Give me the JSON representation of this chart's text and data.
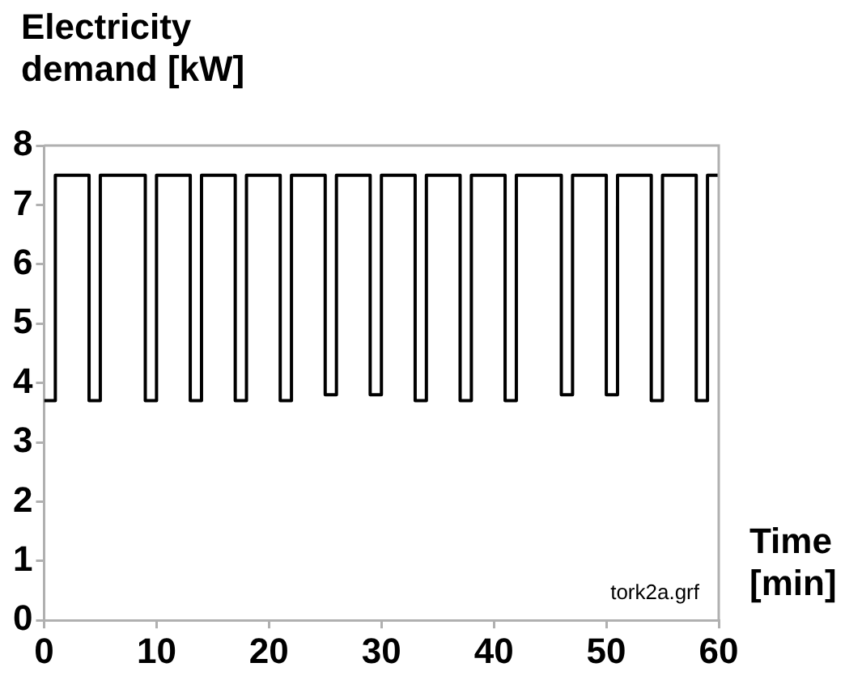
{
  "chart_data": {
    "type": "step",
    "ylabel": "Electricity\ndemand [kW]",
    "xlabel": "Time\n[min]",
    "x": [
      0,
      1,
      4,
      5,
      9,
      10,
      13,
      14,
      17,
      18,
      21,
      22,
      25,
      26,
      29,
      30,
      33,
      34,
      37,
      38,
      41,
      42,
      46,
      47,
      50,
      51,
      54,
      55,
      58,
      59,
      60
    ],
    "series": [
      {
        "color": "#000000",
        "values": [
          3.7,
          7.5,
          3.7,
          7.5,
          3.7,
          7.5,
          3.7,
          7.5,
          3.7,
          7.5,
          3.7,
          7.5,
          3.8,
          7.5,
          3.8,
          7.5,
          3.7,
          7.5,
          3.7,
          7.5,
          3.7,
          7.5,
          3.8,
          7.5,
          3.8,
          7.5,
          3.7,
          7.5,
          3.7,
          7.5,
          7.5
        ]
      }
    ],
    "xlim": [
      0,
      60
    ],
    "xticks": [
      0,
      10,
      20,
      30,
      40,
      50,
      60
    ],
    "ylim": [
      0,
      8
    ],
    "yticks": [
      0,
      1,
      2,
      3,
      4,
      5,
      6,
      7,
      8
    ],
    "grid": false,
    "legend": false,
    "marker": "none",
    "line_style": "solid",
    "annotations": [
      "tork2a.grf"
    ]
  }
}
